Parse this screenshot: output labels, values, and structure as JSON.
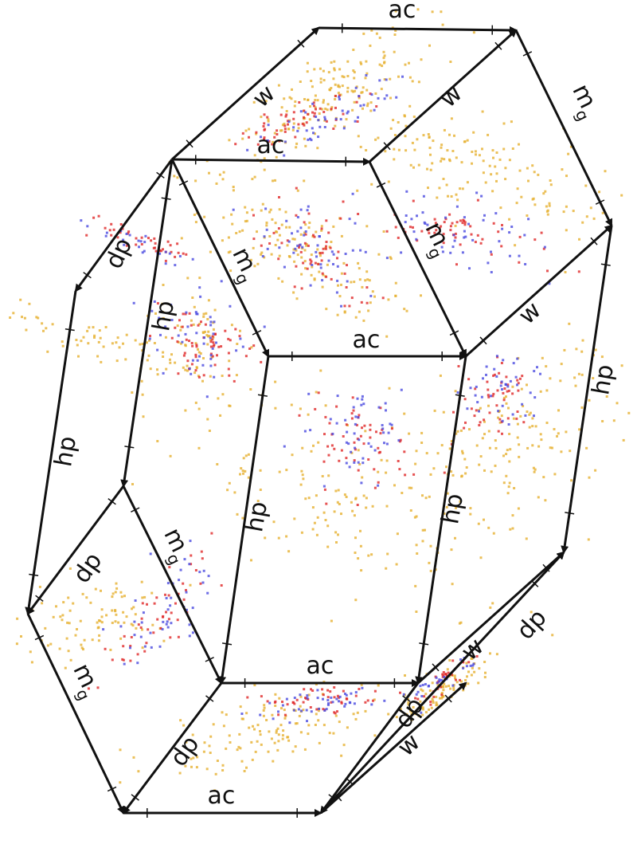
{
  "colors": {
    "edge": "#111111",
    "gold": "#e6b030",
    "red": "#e02828",
    "blue": "#4a4ae0"
  },
  "labels": {
    "ac_top": "ac",
    "w_top_left": "w",
    "ac_top_inner": "ac",
    "w_top_right": "w",
    "mg_top_right": "m",
    "mg_top_right_sub": "g",
    "mg_center_upper": "m",
    "mg_center_upper_sub": "g",
    "mg_right_inner": "m",
    "mg_right_inner_sub": "g",
    "dp_left_upper": "dp",
    "hp_left_inner": "hp",
    "ac_middle": "ac",
    "w_right_middle": "w",
    "hp_right_outer": "hp",
    "hp_left_outer": "hp",
    "hp_center": "hp",
    "hp_right_inner": "hp",
    "mg_left_middle": "m",
    "mg_left_middle_sub": "g",
    "dp_left_lower": "dp",
    "mg_bottom_left": "m",
    "mg_bottom_left_sub": "g",
    "ac_lower": "ac",
    "dp_bottom_left": "dp",
    "ac_bottom": "ac",
    "w_bottom_right_upper": "w",
    "dp_bottom_right": "dp",
    "dp_bottom_right_outer": "dp",
    "w_bottom_right_lower": "w"
  }
}
